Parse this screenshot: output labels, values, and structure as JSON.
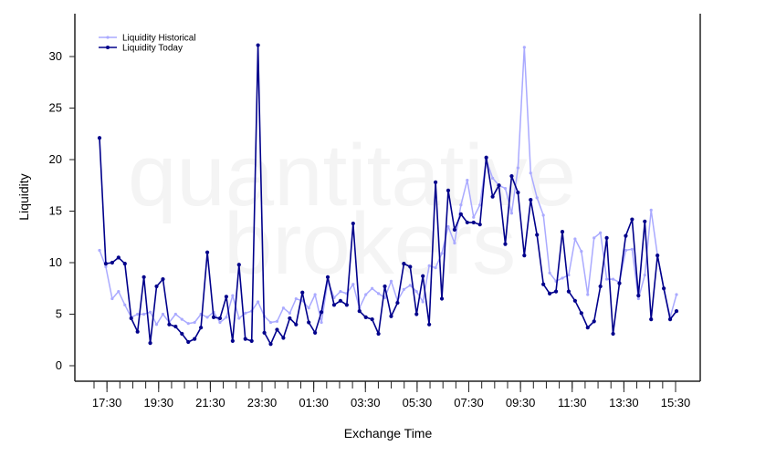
{
  "watermark": {
    "line1": "quantitative",
    "line2": "brokers"
  },
  "chart_data": {
    "type": "line",
    "title": "",
    "xlabel": "Exchange Time",
    "ylabel": "Liquidity",
    "ylim": [
      0,
      32
    ],
    "y_ticks": [
      0,
      5,
      10,
      15,
      20,
      25,
      30
    ],
    "x_tick_labels": [
      "17:30",
      "19:30",
      "21:30",
      "23:30",
      "01:30",
      "03:30",
      "05:30",
      "07:30",
      "09:30",
      "11:30",
      "13:30",
      "15:30"
    ],
    "grid": false,
    "legend_position": "top-left",
    "series": [
      {
        "name": "Liquidity Historical",
        "color": "#aaaaff",
        "values": [
          11.2,
          9.6,
          6.5,
          7.2,
          5.9,
          4.7,
          5.0,
          5.0,
          5.2,
          4.0,
          5.0,
          4.2,
          5.0,
          4.5,
          4.1,
          4.2,
          5.0,
          4.7,
          5.2,
          4.2,
          4.7,
          6.8,
          4.6,
          5.1,
          5.3,
          6.2,
          4.8,
          4.2,
          4.3,
          5.6,
          5.1,
          6.5,
          6.3,
          5.6,
          6.9,
          4.2,
          8.2,
          6.6,
          7.2,
          7.0,
          7.9,
          5.6,
          6.9,
          7.5,
          7.0,
          6.6,
          8.2,
          6.3,
          7.4,
          7.8,
          7.2,
          6.2,
          9.7,
          9.5,
          10.9,
          13.5,
          11.9,
          15.6,
          18.0,
          14.4,
          15.6,
          20.0,
          18.2,
          17.5,
          17.2,
          14.8,
          19.2,
          30.9,
          18.7,
          16.3,
          14.6,
          9.0,
          8.2,
          8.5,
          8.8,
          12.3,
          11.1,
          6.9,
          12.4,
          12.9,
          8.4,
          8.4,
          8.1,
          11.2,
          11.3,
          6.5,
          8.8,
          15.1,
          10.7,
          7.5,
          4.7,
          6.9
        ]
      },
      {
        "name": "Liquidity Today",
        "color": "#00008b",
        "values": [
          22.1,
          9.9,
          10.0,
          10.5,
          9.9,
          4.6,
          3.3,
          8.6,
          2.2,
          7.7,
          8.4,
          4.0,
          3.8,
          3.1,
          2.3,
          2.6,
          3.7,
          11.0,
          4.7,
          4.6,
          6.7,
          2.4,
          9.8,
          2.6,
          2.4,
          31.1,
          3.2,
          2.1,
          3.5,
          2.7,
          4.6,
          4.0,
          7.1,
          4.2,
          3.2,
          5.2,
          8.6,
          5.9,
          6.3,
          5.9,
          13.8,
          5.3,
          4.7,
          4.5,
          3.1,
          7.7,
          4.8,
          6.1,
          9.9,
          9.6,
          5.0,
          8.7,
          4.0,
          17.8,
          6.5,
          17.0,
          13.2,
          14.7,
          13.9,
          13.9,
          13.7,
          20.2,
          16.4,
          17.5,
          11.8,
          18.4,
          16.8,
          10.7,
          16.1,
          12.7,
          7.9,
          7.0,
          7.2,
          13.0,
          7.2,
          6.3,
          5.1,
          3.7,
          4.3,
          7.7,
          12.4,
          3.1,
          8.0,
          12.6,
          14.2,
          6.8,
          14.0,
          4.5,
          10.7,
          7.5,
          4.5,
          5.3
        ]
      }
    ]
  }
}
